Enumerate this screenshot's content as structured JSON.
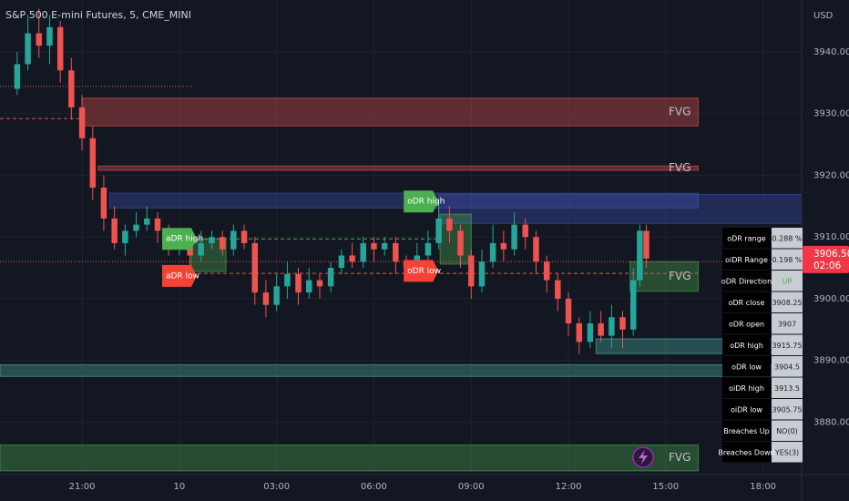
{
  "chart_data": {
    "type": "candlestick",
    "title": "S&P 500 E-mini Futures, 5, CME_MINI",
    "currency": "USD",
    "up_color": "#26a69a",
    "down_color": "#ef5350",
    "grid": true,
    "xlim": [
      18.47,
      43.19
    ],
    "xticks": [
      {
        "value": 21,
        "label": "21:00"
      },
      {
        "value": 24,
        "label": "10"
      },
      {
        "value": 27,
        "label": "03:00"
      },
      {
        "value": 30,
        "label": "06:00"
      },
      {
        "value": 33,
        "label": "09:00"
      },
      {
        "value": 36,
        "label": "12:00"
      },
      {
        "value": 39,
        "label": "15:00"
      },
      {
        "value": 42,
        "label": "18:00"
      }
    ],
    "ylim": [
      3871.5,
      3948.4
    ],
    "yticks": [
      {
        "value": 3880,
        "label": "3880.00"
      },
      {
        "value": 3890,
        "label": "3890.00"
      },
      {
        "value": 3900,
        "label": "3900.00"
      },
      {
        "value": 3910,
        "label": "3910.00"
      },
      {
        "value": 3920,
        "label": "3920.00"
      },
      {
        "value": 3930,
        "label": "3930.00"
      },
      {
        "value": 3940,
        "label": "3940.00"
      }
    ],
    "current_price": {
      "value": 3906.5,
      "label": "3906.50",
      "countdown": "02:06",
      "color": "#f23645"
    },
    "candles": [
      {
        "x": 19.0,
        "o": 3934,
        "h": 3940,
        "l": 3933,
        "c": 3938
      },
      {
        "x": 19.33,
        "o": 3938,
        "h": 3946,
        "l": 3937,
        "c": 3943
      },
      {
        "x": 19.67,
        "o": 3943,
        "h": 3947,
        "l": 3939,
        "c": 3941
      },
      {
        "x": 20.0,
        "o": 3941,
        "h": 3946,
        "l": 3938,
        "c": 3944
      },
      {
        "x": 20.33,
        "o": 3944,
        "h": 3945,
        "l": 3935,
        "c": 3937
      },
      {
        "x": 20.67,
        "o": 3937,
        "h": 3939,
        "l": 3929,
        "c": 3931
      },
      {
        "x": 21.0,
        "o": 3931,
        "h": 3933,
        "l": 3924,
        "c": 3926
      },
      {
        "x": 21.33,
        "o": 3926,
        "h": 3928,
        "l": 3916,
        "c": 3918
      },
      {
        "x": 21.67,
        "o": 3918,
        "h": 3920,
        "l": 3911,
        "c": 3913
      },
      {
        "x": 22.0,
        "o": 3913,
        "h": 3915,
        "l": 3908,
        "c": 3909
      },
      {
        "x": 22.33,
        "o": 3909,
        "h": 3912,
        "l": 3907,
        "c": 3911
      },
      {
        "x": 22.67,
        "o": 3911,
        "h": 3914,
        "l": 3910,
        "c": 3912
      },
      {
        "x": 23.0,
        "o": 3912,
        "h": 3915,
        "l": 3911,
        "c": 3913
      },
      {
        "x": 23.33,
        "o": 3913,
        "h": 3914,
        "l": 3909,
        "c": 3911
      },
      {
        "x": 23.67,
        "o": 3911,
        "h": 3912,
        "l": 3907,
        "c": 3908
      },
      {
        "x": 24.0,
        "o": 3908,
        "h": 3911,
        "l": 3907,
        "c": 3909
      },
      {
        "x": 24.33,
        "o": 3909,
        "h": 3910,
        "l": 3905,
        "c": 3907
      },
      {
        "x": 24.67,
        "o": 3907,
        "h": 3911,
        "l": 3906,
        "c": 3909
      },
      {
        "x": 25.0,
        "o": 3909,
        "h": 3911,
        "l": 3908,
        "c": 3910
      },
      {
        "x": 25.33,
        "o": 3910,
        "h": 3911,
        "l": 3907,
        "c": 3908
      },
      {
        "x": 25.67,
        "o": 3908,
        "h": 3912,
        "l": 3907,
        "c": 3911
      },
      {
        "x": 26.0,
        "o": 3911,
        "h": 3912,
        "l": 3908,
        "c": 3909
      },
      {
        "x": 26.33,
        "o": 3909,
        "h": 3910,
        "l": 3899,
        "c": 3901
      },
      {
        "x": 26.67,
        "o": 3901,
        "h": 3903,
        "l": 3897,
        "c": 3899
      },
      {
        "x": 27.0,
        "o": 3899,
        "h": 3904,
        "l": 3898,
        "c": 3902
      },
      {
        "x": 27.33,
        "o": 3902,
        "h": 3906,
        "l": 3900,
        "c": 3904
      },
      {
        "x": 27.67,
        "o": 3904,
        "h": 3905,
        "l": 3899,
        "c": 3901
      },
      {
        "x": 28.0,
        "o": 3901,
        "h": 3905,
        "l": 3900,
        "c": 3903
      },
      {
        "x": 28.33,
        "o": 3903,
        "h": 3904,
        "l": 3900,
        "c": 3902
      },
      {
        "x": 28.67,
        "o": 3902,
        "h": 3906,
        "l": 3901,
        "c": 3905
      },
      {
        "x": 29.0,
        "o": 3905,
        "h": 3908,
        "l": 3904,
        "c": 3907
      },
      {
        "x": 29.33,
        "o": 3907,
        "h": 3909,
        "l": 3905,
        "c": 3906
      },
      {
        "x": 29.67,
        "o": 3906,
        "h": 3910,
        "l": 3905,
        "c": 3909
      },
      {
        "x": 30.0,
        "o": 3909,
        "h": 3910,
        "l": 3906,
        "c": 3908
      },
      {
        "x": 30.33,
        "o": 3908,
        "h": 3910,
        "l": 3907,
        "c": 3909
      },
      {
        "x": 30.67,
        "o": 3909,
        "h": 3910,
        "l": 3904,
        "c": 3906
      },
      {
        "x": 31.0,
        "o": 3906,
        "h": 3907,
        "l": 3904,
        "c": 3905
      },
      {
        "x": 31.33,
        "o": 3905,
        "h": 3909,
        "l": 3904,
        "c": 3907
      },
      {
        "x": 31.67,
        "o": 3907,
        "h": 3911,
        "l": 3906,
        "c": 3909
      },
      {
        "x": 32.0,
        "o": 3909,
        "h": 3916,
        "l": 3908,
        "c": 3913
      },
      {
        "x": 32.33,
        "o": 3913,
        "h": 3915,
        "l": 3909,
        "c": 3911
      },
      {
        "x": 32.67,
        "o": 3911,
        "h": 3912,
        "l": 3905,
        "c": 3907
      },
      {
        "x": 33.0,
        "o": 3907,
        "h": 3908,
        "l": 3900,
        "c": 3902
      },
      {
        "x": 33.33,
        "o": 3902,
        "h": 3908,
        "l": 3901,
        "c": 3906
      },
      {
        "x": 33.67,
        "o": 3906,
        "h": 3912,
        "l": 3905,
        "c": 3909
      },
      {
        "x": 34.0,
        "o": 3909,
        "h": 3911,
        "l": 3906,
        "c": 3908
      },
      {
        "x": 34.33,
        "o": 3908,
        "h": 3914,
        "l": 3907,
        "c": 3912
      },
      {
        "x": 34.67,
        "o": 3912,
        "h": 3913,
        "l": 3908,
        "c": 3910
      },
      {
        "x": 35.0,
        "o": 3910,
        "h": 3911,
        "l": 3904,
        "c": 3906
      },
      {
        "x": 35.33,
        "o": 3906,
        "h": 3907,
        "l": 3901,
        "c": 3903
      },
      {
        "x": 35.67,
        "o": 3903,
        "h": 3904,
        "l": 3898,
        "c": 3900
      },
      {
        "x": 36.0,
        "o": 3900,
        "h": 3901,
        "l": 3894,
        "c": 3896
      },
      {
        "x": 36.33,
        "o": 3896,
        "h": 3897,
        "l": 3891,
        "c": 3893
      },
      {
        "x": 36.67,
        "o": 3893,
        "h": 3898,
        "l": 3892,
        "c": 3896
      },
      {
        "x": 37.0,
        "o": 3896,
        "h": 3898,
        "l": 3893,
        "c": 3894
      },
      {
        "x": 37.33,
        "o": 3894,
        "h": 3899,
        "l": 3892,
        "c": 3897
      },
      {
        "x": 37.67,
        "o": 3897,
        "h": 3898,
        "l": 3892,
        "c": 3895
      },
      {
        "x": 38.0,
        "o": 3895,
        "h": 3905,
        "l": 3894,
        "c": 3903
      },
      {
        "x": 38.2,
        "o": 3903,
        "h": 3912,
        "l": 3902,
        "c": 3911
      },
      {
        "x": 38.4,
        "o": 3911,
        "h": 3912,
        "l": 3905,
        "c": 3906.5
      }
    ],
    "zones": [
      {
        "label": "FVG",
        "top": 3932.5,
        "bottom": 3928,
        "start": 21,
        "end": 40,
        "color": "#ef5350"
      },
      {
        "label": "FVG",
        "top": 3921.5,
        "bottom": 3920.8,
        "start": 21.5,
        "end": 40,
        "color": "#ef5350"
      },
      {
        "top": 3917.1,
        "bottom": 3914.7,
        "start": 21.85,
        "end": 40,
        "color": "#3f51b5"
      },
      {
        "top": 3916.9,
        "bottom": 3912.2,
        "start": 32.0,
        "end": 43.19,
        "color": "#3f51b5"
      },
      {
        "top": 3909.7,
        "bottom": 3904.4,
        "start": 24.37,
        "end": 25.44,
        "color": "#4caf50"
      },
      {
        "top": 3913.7,
        "bottom": 3905.6,
        "start": 32.04,
        "end": 33.0,
        "color": "#4caf50"
      },
      {
        "label": "FVG",
        "top": 3906,
        "bottom": 3901.2,
        "start": 37.9,
        "end": 40,
        "color": "#4caf50"
      },
      {
        "top": 3893.5,
        "bottom": 3891.1,
        "start": 36.85,
        "end": 43.19,
        "color": "#4db6ac"
      },
      {
        "top": 3889.3,
        "bottom": 3887.4,
        "start": 18.47,
        "end": 43.19,
        "color": "#4db6ac"
      },
      {
        "label": "FVG",
        "top": 3876.3,
        "bottom": 3872.1,
        "start": 18.47,
        "end": 40,
        "color": "#4caf50"
      }
    ],
    "levels": [
      {
        "price": 3934.4,
        "start": 18.47,
        "end": 24.4,
        "color": "#ef5350",
        "style": "dotted"
      },
      {
        "price": 3929.2,
        "start": 18.47,
        "end": 21,
        "color": "#ef5350",
        "style": "dashed"
      },
      {
        "price": 3906,
        "start": 18.47,
        "end": 43.19,
        "color": "#ef5350",
        "style": "dotted"
      },
      {
        "price": 3904.1,
        "start": 24.37,
        "end": 40,
        "color": "#ef5350",
        "style": "dashed"
      },
      {
        "price": 3909.7,
        "start": 24.37,
        "end": 32.0,
        "color": "#4caf50",
        "style": "dashed"
      }
    ],
    "markers": [
      {
        "text": "oDR high",
        "price": 3915.75,
        "x": 30.92,
        "color": "#4caf50"
      },
      {
        "text": "aDR high",
        "price": 3909.7,
        "x": 23.47,
        "color": "#4caf50"
      },
      {
        "text": "aDR low",
        "price": 3903.7,
        "x": 23.47,
        "color": "#f44336"
      },
      {
        "text": "oDR low",
        "price": 3904.5,
        "x": 30.92,
        "color": "#f44336"
      }
    ],
    "table": [
      {
        "label": "oDR range",
        "value": "0.288 %"
      },
      {
        "label": "oiDR Range",
        "value": "0.198 %"
      },
      {
        "label": "oDR Direction",
        "value": "UP",
        "value_color": "#4caf50"
      },
      {
        "label": "oDR close",
        "value": "3908.25"
      },
      {
        "label": "oDR open",
        "value": "3907"
      },
      {
        "label": "oDR high",
        "value": "3915.75"
      },
      {
        "label": "oDR low",
        "value": "3904.5"
      },
      {
        "label": "oiDR high",
        "value": "3913.5"
      },
      {
        "label": "oiDR low",
        "value": "3905.75"
      },
      {
        "label": "Breaches Up",
        "value": "NO(0)"
      },
      {
        "label": "Breaches Down",
        "value": "YES(3)"
      }
    ]
  }
}
